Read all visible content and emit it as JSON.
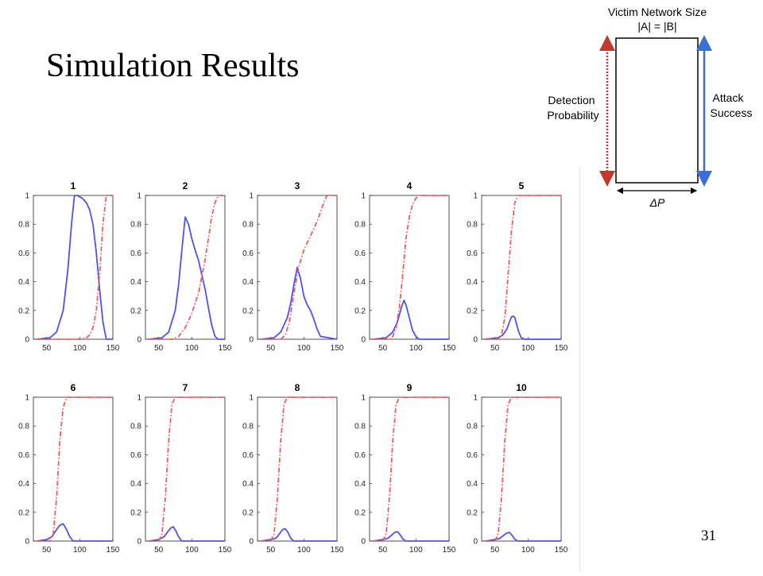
{
  "slide": {
    "title": "Simulation Results",
    "page_number": "31"
  },
  "legend": {
    "top_label_line1": "Victim Network Size",
    "top_label_line2": "|A| = |B|",
    "left_label_line1": "Detection",
    "left_label_line2": "Probability",
    "right_label_line1": "Attack",
    "right_label_line2": "Success",
    "bottom_label": "ΔP",
    "left_arrow_color": "#c0392b",
    "right_arrow_color": "#3a6fd8"
  },
  "colors": {
    "attack_success": "#4f52ee",
    "detection_probability": "#f05a5a"
  },
  "chart_data": [
    {
      "type": "line",
      "title": "1",
      "xlim": [
        30,
        150
      ],
      "ylim": [
        0,
        1
      ],
      "xticks": [
        50,
        100,
        150
      ],
      "yticks": [
        0,
        0.2,
        0.4,
        0.6,
        0.8,
        1
      ],
      "series": [
        {
          "style": "solid-blue",
          "x": [
            35,
            55,
            65,
            75,
            82,
            88,
            92,
            96,
            100,
            104,
            110,
            115,
            120,
            125,
            130,
            135,
            140,
            150
          ],
          "y": [
            0,
            0.01,
            0.05,
            0.2,
            0.48,
            0.82,
            1.0,
            1.0,
            0.99,
            0.98,
            0.95,
            0.9,
            0.8,
            0.6,
            0.35,
            0.12,
            0.0,
            0.0
          ]
        },
        {
          "style": "dashdot-red",
          "x": [
            35,
            100,
            110,
            115,
            120,
            125,
            130,
            135,
            140,
            150
          ],
          "y": [
            0,
            0,
            0.01,
            0.03,
            0.08,
            0.2,
            0.45,
            0.8,
            1.0,
            1.0
          ]
        }
      ]
    },
    {
      "type": "line",
      "title": "2",
      "xlim": [
        30,
        150
      ],
      "ylim": [
        0,
        1
      ],
      "xticks": [
        50,
        100,
        150
      ],
      "yticks": [
        0,
        0.2,
        0.4,
        0.6,
        0.8,
        1
      ],
      "series": [
        {
          "style": "solid-blue",
          "x": [
            35,
            55,
            65,
            75,
            80,
            85,
            90,
            95,
            100,
            105,
            110,
            115,
            120,
            125,
            130,
            135,
            140,
            150
          ],
          "y": [
            0,
            0.01,
            0.05,
            0.2,
            0.38,
            0.62,
            0.85,
            0.8,
            0.7,
            0.62,
            0.55,
            0.45,
            0.35,
            0.22,
            0.1,
            0.02,
            0.0,
            0.0
          ]
        },
        {
          "style": "dashdot-red",
          "x": [
            35,
            70,
            80,
            90,
            100,
            110,
            120,
            125,
            130,
            135,
            140,
            150
          ],
          "y": [
            0,
            0,
            0.02,
            0.08,
            0.18,
            0.32,
            0.55,
            0.7,
            0.85,
            0.95,
            1.0,
            1.0
          ]
        }
      ]
    },
    {
      "type": "line",
      "title": "3",
      "xlim": [
        30,
        150
      ],
      "ylim": [
        0,
        1
      ],
      "xticks": [
        50,
        100,
        150
      ],
      "yticks": [
        0,
        0.2,
        0.4,
        0.6,
        0.8,
        1
      ],
      "series": [
        {
          "style": "solid-blue",
          "x": [
            35,
            55,
            65,
            75,
            80,
            85,
            90,
            95,
            100,
            105,
            110,
            115,
            120,
            125,
            150
          ],
          "y": [
            0,
            0.01,
            0.05,
            0.15,
            0.25,
            0.38,
            0.5,
            0.42,
            0.3,
            0.24,
            0.2,
            0.14,
            0.07,
            0.02,
            0.0
          ]
        },
        {
          "style": "dashdot-red",
          "x": [
            35,
            65,
            72,
            78,
            85,
            92,
            100,
            110,
            120,
            130,
            135,
            140,
            150
          ],
          "y": [
            0,
            0,
            0.03,
            0.12,
            0.32,
            0.5,
            0.62,
            0.72,
            0.82,
            0.95,
            1.0,
            1.0,
            1.0
          ]
        }
      ]
    },
    {
      "type": "line",
      "title": "4",
      "xlim": [
        30,
        150
      ],
      "ylim": [
        0,
        1
      ],
      "xticks": [
        50,
        100,
        150
      ],
      "yticks": [
        0,
        0.2,
        0.4,
        0.6,
        0.8,
        1
      ],
      "series": [
        {
          "style": "solid-blue",
          "x": [
            35,
            55,
            65,
            72,
            78,
            82,
            85,
            90,
            95,
            100,
            105,
            150
          ],
          "y": [
            0,
            0.01,
            0.05,
            0.12,
            0.22,
            0.27,
            0.24,
            0.15,
            0.06,
            0.02,
            0.0,
            0.0
          ]
        },
        {
          "style": "dashdot-red",
          "x": [
            35,
            60,
            65,
            70,
            75,
            80,
            85,
            90,
            95,
            100,
            105,
            110,
            150
          ],
          "y": [
            0,
            0,
            0.02,
            0.08,
            0.22,
            0.45,
            0.7,
            0.85,
            0.94,
            0.98,
            1.0,
            1.0,
            1.0
          ]
        }
      ]
    },
    {
      "type": "line",
      "title": "5",
      "xlim": [
        30,
        150
      ],
      "ylim": [
        0,
        1
      ],
      "xticks": [
        50,
        100,
        150
      ],
      "yticks": [
        0,
        0.2,
        0.4,
        0.6,
        0.8,
        1
      ],
      "series": [
        {
          "style": "solid-blue",
          "x": [
            35,
            55,
            62,
            68,
            72,
            75,
            78,
            80,
            83,
            86,
            90,
            95,
            150
          ],
          "y": [
            0,
            0.01,
            0.03,
            0.07,
            0.12,
            0.155,
            0.16,
            0.15,
            0.1,
            0.05,
            0.01,
            0.0,
            0.0
          ]
        },
        {
          "style": "dashdot-red",
          "x": [
            35,
            55,
            60,
            65,
            70,
            75,
            80,
            85,
            90,
            150
          ],
          "y": [
            0,
            0,
            0.03,
            0.15,
            0.45,
            0.75,
            0.95,
            1.0,
            1.0,
            1.0
          ]
        }
      ]
    },
    {
      "type": "line",
      "title": "6",
      "xlim": [
        30,
        150
      ],
      "ylim": [
        0,
        1
      ],
      "xticks": [
        50,
        100,
        150
      ],
      "yticks": [
        0,
        0.2,
        0.4,
        0.6,
        0.8,
        1
      ],
      "series": [
        {
          "style": "solid-blue",
          "x": [
            35,
            50,
            58,
            65,
            70,
            75,
            80,
            85,
            90,
            150
          ],
          "y": [
            0,
            0.01,
            0.03,
            0.08,
            0.11,
            0.12,
            0.08,
            0.03,
            0.0,
            0.0
          ]
        },
        {
          "style": "dashdot-red",
          "x": [
            35,
            55,
            60,
            65,
            70,
            75,
            80,
            150
          ],
          "y": [
            0,
            0,
            0.05,
            0.3,
            0.7,
            0.93,
            1.0,
            1.0
          ]
        }
      ]
    },
    {
      "type": "line",
      "title": "7",
      "xlim": [
        30,
        150
      ],
      "ylim": [
        0,
        1
      ],
      "xticks": [
        50,
        100,
        150
      ],
      "yticks": [
        0,
        0.2,
        0.4,
        0.6,
        0.8,
        1
      ],
      "series": [
        {
          "style": "solid-blue",
          "x": [
            35,
            50,
            58,
            63,
            68,
            72,
            76,
            80,
            85,
            150
          ],
          "y": [
            0,
            0.01,
            0.03,
            0.06,
            0.09,
            0.1,
            0.07,
            0.03,
            0.0,
            0.0
          ]
        },
        {
          "style": "dashdot-red",
          "x": [
            35,
            50,
            55,
            60,
            65,
            70,
            75,
            150
          ],
          "y": [
            0,
            0,
            0.05,
            0.3,
            0.7,
            0.95,
            1.0,
            1.0
          ]
        }
      ]
    },
    {
      "type": "line",
      "title": "8",
      "xlim": [
        30,
        150
      ],
      "ylim": [
        0,
        1
      ],
      "xticks": [
        50,
        100,
        150
      ],
      "yticks": [
        0,
        0.2,
        0.4,
        0.6,
        0.8,
        1
      ],
      "series": [
        {
          "style": "solid-blue",
          "x": [
            35,
            50,
            58,
            63,
            68,
            72,
            76,
            80,
            85,
            150
          ],
          "y": [
            0,
            0.01,
            0.02,
            0.05,
            0.08,
            0.085,
            0.06,
            0.02,
            0.0,
            0.0
          ]
        },
        {
          "style": "dashdot-red",
          "x": [
            35,
            50,
            55,
            60,
            65,
            70,
            75,
            150
          ],
          "y": [
            0,
            0,
            0.05,
            0.3,
            0.7,
            0.95,
            1.0,
            1.0
          ]
        }
      ]
    },
    {
      "type": "line",
      "title": "9",
      "xlim": [
        30,
        150
      ],
      "ylim": [
        0,
        1
      ],
      "xticks": [
        50,
        100,
        150
      ],
      "yticks": [
        0,
        0.2,
        0.4,
        0.6,
        0.8,
        1
      ],
      "series": [
        {
          "style": "solid-blue",
          "x": [
            35,
            50,
            58,
            63,
            68,
            72,
            76,
            80,
            85,
            150
          ],
          "y": [
            0,
            0.01,
            0.02,
            0.04,
            0.06,
            0.065,
            0.045,
            0.015,
            0.0,
            0.0
          ]
        },
        {
          "style": "dashdot-red",
          "x": [
            35,
            50,
            55,
            60,
            65,
            70,
            75,
            150
          ],
          "y": [
            0,
            0,
            0.05,
            0.3,
            0.7,
            0.95,
            1.0,
            1.0
          ]
        }
      ]
    },
    {
      "type": "line",
      "title": "10",
      "xlim": [
        30,
        150
      ],
      "ylim": [
        0,
        1
      ],
      "xticks": [
        50,
        100,
        150
      ],
      "yticks": [
        0,
        0.2,
        0.4,
        0.6,
        0.8,
        1
      ],
      "series": [
        {
          "style": "solid-blue",
          "x": [
            35,
            50,
            58,
            63,
            68,
            72,
            76,
            80,
            85,
            150
          ],
          "y": [
            0,
            0.01,
            0.02,
            0.04,
            0.055,
            0.06,
            0.04,
            0.012,
            0.0,
            0.0
          ]
        },
        {
          "style": "dashdot-red",
          "x": [
            35,
            50,
            55,
            60,
            65,
            70,
            75,
            150
          ],
          "y": [
            0,
            0,
            0.05,
            0.3,
            0.7,
            0.95,
            1.0,
            1.0
          ]
        }
      ]
    }
  ]
}
